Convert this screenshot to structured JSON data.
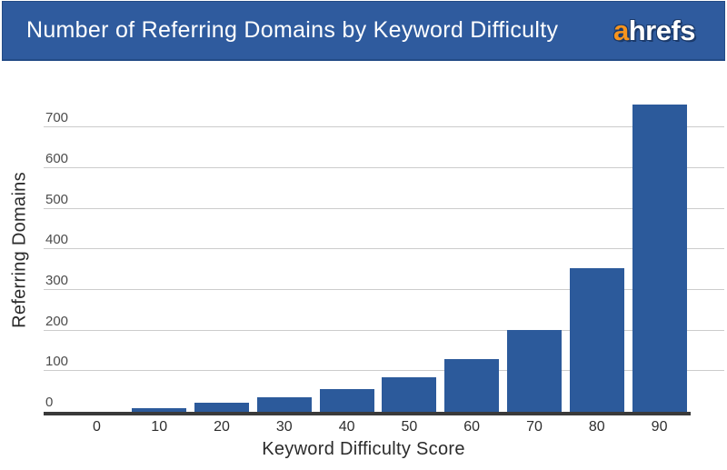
{
  "header": {
    "title": "Number of Referring Domains by Keyword Difficulty",
    "logo_prefix": "a",
    "logo_suffix": "hrefs"
  },
  "chart_data": {
    "type": "bar",
    "title": "Number of Referring Domains by Keyword Difficulty",
    "categories": [
      "0",
      "10",
      "20",
      "30",
      "40",
      "50",
      "60",
      "70",
      "80",
      "90"
    ],
    "values": [
      0,
      10,
      22,
      36,
      56,
      84,
      129,
      202,
      353,
      756
    ],
    "xlabel": "Keyword Difficulty Score",
    "ylabel": "Referring Domains",
    "yticks": [
      0,
      100,
      200,
      300,
      400,
      500,
      600,
      700
    ],
    "ylim": [
      0,
      790
    ],
    "grid": true,
    "legend": false
  },
  "colors": {
    "header_bg": "#2f5b9e",
    "logo_orange": "#f7941e",
    "bar_fill": "#2c5a9b",
    "gridline": "#cccccc",
    "axis_line": "#3a3a3a",
    "tick_label": "#4c4c4c"
  }
}
